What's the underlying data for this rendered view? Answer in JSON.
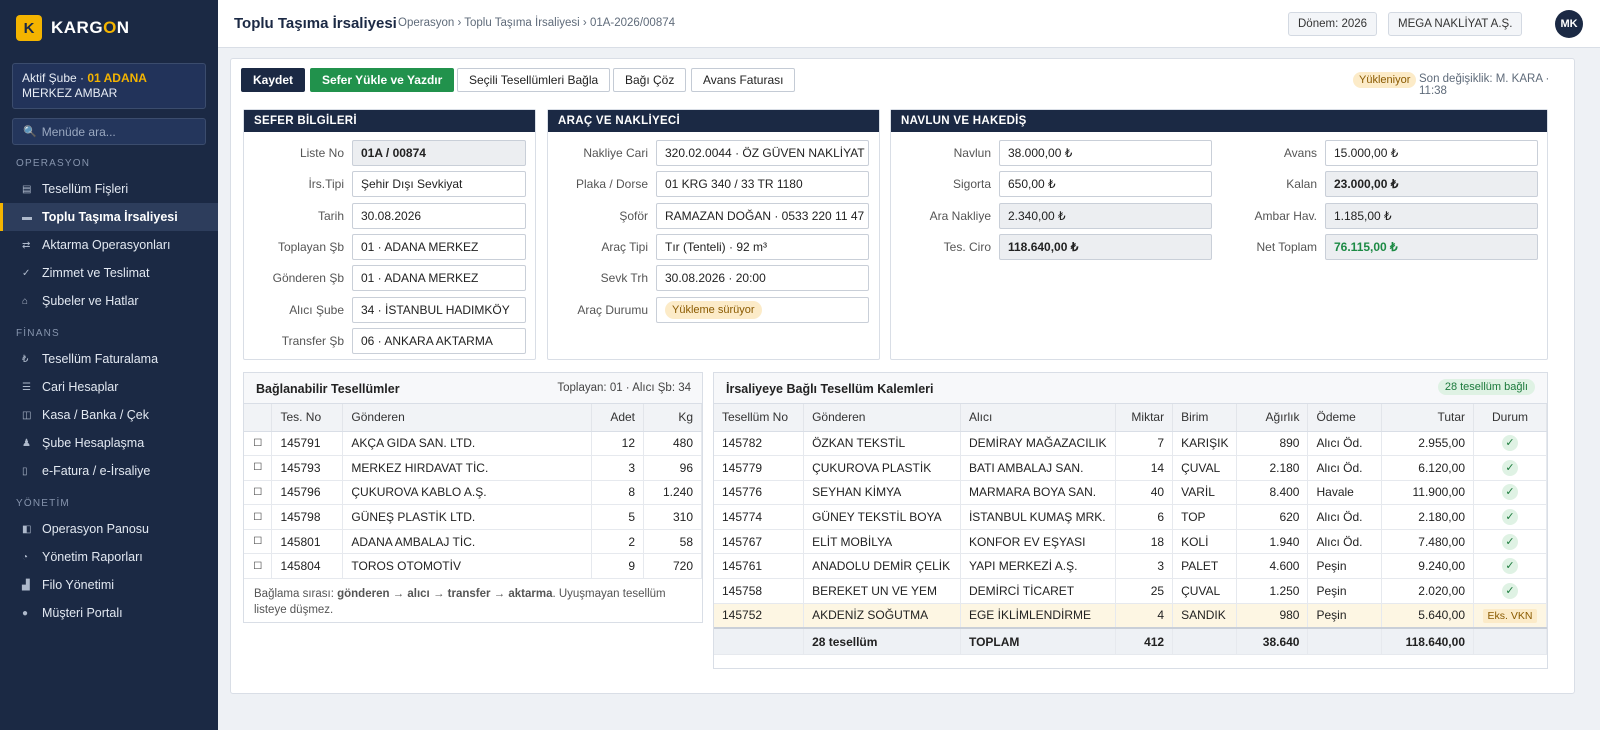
{
  "app": {
    "logo_letter": "K",
    "name_a": "KARG",
    "name_o": "O",
    "name_b": "N"
  },
  "sidebar": {
    "branch_prefix": "Aktif Şube · ",
    "branch_code": "01 ADANA",
    "branch_suffix": " MERKEZ AMBAR",
    "search_placeholder": "Menüde ara...",
    "sections": [
      {
        "title": "OPERASYON",
        "items": [
          {
            "icon": "receipt-icon",
            "glyph": "▤",
            "label": "Tesellüm Fişleri",
            "active": false
          },
          {
            "icon": "truck-doc-icon",
            "glyph": "▬",
            "label": "Toplu Taşıma İrsaliyesi",
            "active": true
          },
          {
            "icon": "transfer-icon",
            "glyph": "⇄",
            "label": "Aktarma Operasyonları",
            "active": false
          },
          {
            "icon": "check-icon",
            "glyph": "✓",
            "label": "Zimmet ve Teslimat",
            "active": false
          },
          {
            "icon": "home-icon",
            "glyph": "⌂",
            "label": "Şubeler ve Hatlar",
            "active": false
          }
        ]
      },
      {
        "title": "FİNANS",
        "items": [
          {
            "icon": "lira-icon",
            "glyph": "₺",
            "label": "Tesellüm Faturalama",
            "active": false
          },
          {
            "icon": "list-icon",
            "glyph": "☰",
            "label": "Cari Hesaplar",
            "active": false
          },
          {
            "icon": "safe-icon",
            "glyph": "◫",
            "label": "Kasa / Banka / Çek",
            "active": false
          },
          {
            "icon": "users-icon",
            "glyph": "♟",
            "label": "Şube Hesaplaşma",
            "active": false
          },
          {
            "icon": "document-icon",
            "glyph": "▯",
            "label": "e-Fatura / e-İrsaliye",
            "active": false
          }
        ]
      },
      {
        "title": "YÖNETİM",
        "items": [
          {
            "icon": "dashboard-icon",
            "glyph": "◧",
            "label": "Operasyon Panosu",
            "active": false
          },
          {
            "icon": "chart-icon",
            "glyph": "◔",
            "label": "Yönetim Raporları",
            "active": false
          },
          {
            "icon": "fleet-icon",
            "glyph": "▟",
            "label": "Filo Yönetimi",
            "active": false
          },
          {
            "icon": "globe-icon",
            "glyph": "●",
            "label": "Müşteri Portalı",
            "active": false
          }
        ]
      }
    ]
  },
  "header": {
    "title": "Toplu Taşıma İrsaliyesi",
    "breadcrumb": "Operasyon › Toplu Taşıma İrsaliyesi › 01A-2026/00874",
    "period": "Dönem: 2026",
    "company": "MEGA NAKLİYAT A.Ş.",
    "avatar": "MK"
  },
  "toolbar": {
    "save": "Kaydet",
    "load_print": "Sefer Yükle ve Yazdır",
    "link_selected": "Seçili Tesellümleri Bağla",
    "unlink": "Bağı Çöz",
    "advance_invoice": "Avans Faturası",
    "status": "Yükleniyor",
    "last_modified": "Son değişiklik: M. KARA · 11:38"
  },
  "trip": {
    "title": "SEFER BİLGİLERİ",
    "fields": [
      {
        "label": "Liste No",
        "value": "01A / 00874"
      },
      {
        "label": "İrs.Tipi",
        "value": "Şehir Dışı Sevkiyat"
      },
      {
        "label": "Tarih",
        "value": "30.08.2026"
      },
      {
        "label": "Toplayan Şb",
        "value": "01 · ADANA MERKEZ"
      },
      {
        "label": "Gönderen Şb",
        "value": "01 · ADANA MERKEZ"
      },
      {
        "label": "Alıcı Şube",
        "value": "34 · İSTANBUL HADIMKÖY"
      },
      {
        "label": "Transfer Şb",
        "value": "06 · ANKARA AKTARMA"
      }
    ]
  },
  "vehicle": {
    "title": "ARAÇ VE NAKLİYECİ",
    "fields": [
      {
        "label": "Nakliye Cari",
        "value": "320.02.0044 · ÖZ GÜVEN NAKLİYAT"
      },
      {
        "label": "Plaka / Dorse",
        "value": "01 KRG 340  /  33 TR 1180"
      },
      {
        "label": "Şoför",
        "value": "RAMAZAN DOĞAN · 0533 220 11 47"
      },
      {
        "label": "Araç Tipi",
        "value": "Tır (Tenteli) · 92 m³"
      },
      {
        "label": "Sevk Trh",
        "value": "30.08.2026 · 20:00"
      },
      {
        "label": "Araç Durumu",
        "value": "Yükleme sürüyor"
      }
    ]
  },
  "freight": {
    "title": "NAVLUN VE HAKEDİŞ",
    "left": [
      {
        "label": "Navlun",
        "value": "38.000,00 ₺"
      },
      {
        "label": "Sigorta",
        "value": "650,00 ₺"
      },
      {
        "label": "Ara Nakliye",
        "value": "2.340,00 ₺"
      },
      {
        "label": "Tes. Ciro",
        "value": "118.640,00 ₺"
      }
    ],
    "right": [
      {
        "label": "Avans",
        "value": "15.000,00 ₺"
      },
      {
        "label": "Kalan",
        "value": "23.000,00 ₺"
      },
      {
        "label": "Ambar Hav.",
        "value": "1.185,00 ₺"
      },
      {
        "label": "Net Toplam",
        "value": "76.115,00 ₺"
      }
    ]
  },
  "available": {
    "title": "Bağlanabilir Tesellümler",
    "filter": "Toplayan: 01 · Alıcı Şb: 34",
    "columns": [
      "",
      "Tes. No",
      "Gönderen",
      "Adet",
      "Kg"
    ],
    "rows": [
      [
        "☐",
        "145791",
        "AKÇA GIDA SAN. LTD.",
        "12",
        "480"
      ],
      [
        "☐",
        "145793",
        "MERKEZ HIRDAVAT TİC.",
        "3",
        "96"
      ],
      [
        "☐",
        "145796",
        "ÇUKUROVA KABLO A.Ş.",
        "8",
        "1.240"
      ],
      [
        "☐",
        "145798",
        "GÜNEŞ PLASTİK LTD.",
        "5",
        "310"
      ],
      [
        "☐",
        "145801",
        "ADANA AMBALAJ TİC.",
        "2",
        "58"
      ],
      [
        "☐",
        "145804",
        "TOROS OTOMOTİV",
        "9",
        "720"
      ]
    ],
    "note_prefix": "Bağlama sırası: ",
    "note_bold": "gönderen → alıcı → transfer → aktarma",
    "note_suffix": ". Uyuşmayan tesellüm listeye düşmez."
  },
  "linked": {
    "title": "İrsaliyeye Bağlı Tesellüm Kalemleri",
    "badge": "28 tesellüm bağlı",
    "columns": [
      "Tesellüm No",
      "Gönderen",
      "Alıcı",
      "Miktar",
      "Birim",
      "Ağırlık",
      "Ödeme",
      "Tutar",
      "Durum"
    ],
    "rows": [
      [
        "145782",
        "ÖZKAN TEKSTİL",
        "DEMİRAY MAĞAZACILIK",
        "7",
        "KARIŞIK",
        "890",
        "Alıcı Öd.",
        "2.955,00",
        "✓"
      ],
      [
        "145779",
        "ÇUKUROVA PLASTİK",
        "BATI AMBALAJ SAN.",
        "14",
        "ÇUVAL",
        "2.180",
        "Alıcı Öd.",
        "6.120,00",
        "✓"
      ],
      [
        "145776",
        "SEYHAN KİMYA",
        "MARMARA BOYA SAN.",
        "40",
        "VARİL",
        "8.400",
        "Havale",
        "11.900,00",
        "✓"
      ],
      [
        "145774",
        "GÜNEY TEKSTİL BOYA",
        "İSTANBUL KUMAŞ MRK.",
        "6",
        "TOP",
        "620",
        "Alıcı Öd.",
        "2.180,00",
        "✓"
      ],
      [
        "145767",
        "ELİT MOBİLYA",
        "KONFOR EV EŞYASI",
        "18",
        "KOLİ",
        "1.940",
        "Alıcı Öd.",
        "7.480,00",
        "✓"
      ],
      [
        "145761",
        "ANADOLU DEMİR ÇELİK",
        "YAPI MERKEZİ A.Ş.",
        "3",
        "PALET",
        "4.600",
        "Peşin",
        "9.240,00",
        "✓"
      ],
      [
        "145758",
        "BEREKET UN VE YEM",
        "DEMİRCİ TİCARET",
        "25",
        "ÇUVAL",
        "1.250",
        "Peşin",
        "2.020,00",
        "✓"
      ],
      [
        "145752",
        "AKDENİZ SOĞUTMA",
        "EGE İKLİMLENDİRME",
        "4",
        "SANDIK",
        "980",
        "Peşin",
        "5.640,00",
        "Eks. VKN"
      ]
    ],
    "total": [
      "",
      "28 tesellüm",
      "TOPLAM",
      "412",
      "",
      "38.640",
      "",
      "118.640,00",
      ""
    ]
  }
}
